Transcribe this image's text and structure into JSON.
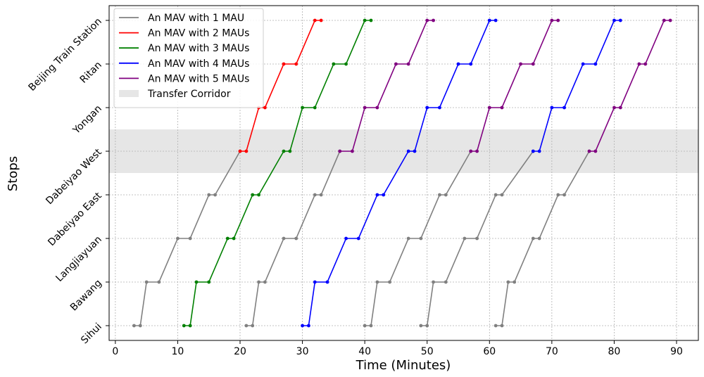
{
  "chart_data": {
    "type": "line",
    "xlabel": "Time (Minutes)",
    "ylabel": "Stops",
    "xlim": [
      -1,
      93.5
    ],
    "x_ticks": [
      0,
      10,
      20,
      30,
      40,
      50,
      60,
      70,
      80,
      90
    ],
    "y_categories": [
      "Sihui",
      "Bawang",
      "Langjiayuan",
      "Dabeiyao East",
      "Dabeiyao West",
      "Yongan",
      "Ritan",
      "Beijing Train Station"
    ],
    "grid": true,
    "legend_placement": "top-left",
    "transfer_corridor": {
      "label": "Transfer Corridor",
      "color": "#e6e6e6",
      "y_range": [
        3.5,
        4.5
      ]
    },
    "series": [
      {
        "name": "An MAV with 1 MAU",
        "color": "#808080"
      },
      {
        "name": "An MAV with 2 MAUs",
        "color": "#ff0000"
      },
      {
        "name": "An MAV with 3 MAUs",
        "color": "#008000"
      },
      {
        "name": "An MAV with 4 MAUs",
        "color": "#0000ff"
      },
      {
        "name": "An MAV with 5 MAUs",
        "color": "#800080"
      }
    ],
    "vehicles": [
      {
        "series": 0,
        "stops": [
          [
            3,
            4
          ],
          [
            5,
            7
          ],
          [
            10,
            12
          ],
          [
            15,
            16
          ],
          [
            20
          ]
        ]
      },
      {
        "series": 1,
        "stops": [
          null,
          null,
          null,
          null,
          [
            20,
            21
          ],
          [
            23,
            24
          ],
          [
            27,
            29
          ],
          [
            32,
            33
          ]
        ]
      },
      {
        "series": 2,
        "stops": [
          [
            11,
            12
          ],
          [
            13,
            15
          ],
          [
            18,
            19
          ],
          [
            22,
            23
          ],
          [
            27,
            28
          ],
          [
            30,
            32
          ],
          [
            35,
            37
          ],
          [
            40,
            41
          ]
        ]
      },
      {
        "series": 0,
        "stops": [
          [
            21,
            22
          ],
          [
            23,
            24
          ],
          [
            27,
            29
          ],
          [
            32,
            33
          ],
          [
            36
          ]
        ]
      },
      {
        "series": 4,
        "stops": [
          null,
          null,
          null,
          null,
          [
            36,
            38
          ],
          [
            40,
            42
          ],
          [
            45,
            47
          ],
          [
            50,
            51
          ]
        ]
      },
      {
        "series": 3,
        "stops": [
          [
            30,
            31
          ],
          [
            32,
            34
          ],
          [
            37,
            39
          ],
          [
            42,
            43
          ],
          [
            47,
            48
          ],
          [
            50,
            52
          ],
          [
            55,
            57
          ],
          [
            60,
            61
          ]
        ]
      },
      {
        "series": 0,
        "stops": [
          [
            40,
            41
          ],
          [
            42,
            44
          ],
          [
            47,
            49
          ],
          [
            52,
            53
          ],
          [
            57
          ]
        ]
      },
      {
        "series": 4,
        "stops": [
          null,
          null,
          null,
          null,
          [
            57,
            58
          ],
          [
            60,
            62
          ],
          [
            65,
            67
          ],
          [
            70,
            71
          ]
        ]
      },
      {
        "series": 0,
        "stops": [
          [
            49,
            50
          ],
          [
            51,
            53
          ],
          [
            56,
            58
          ],
          [
            61,
            62
          ],
          [
            67
          ]
        ]
      },
      {
        "series": 3,
        "stops": [
          null,
          null,
          null,
          null,
          [
            67,
            68
          ],
          [
            70,
            72
          ],
          [
            75,
            77
          ],
          [
            80,
            81
          ]
        ]
      },
      {
        "series": 0,
        "stops": [
          [
            61,
            62
          ],
          [
            63,
            64
          ],
          [
            67,
            68
          ],
          [
            71,
            72
          ],
          [
            76
          ]
        ]
      },
      {
        "series": 4,
        "stops": [
          null,
          null,
          null,
          null,
          [
            76,
            77
          ],
          [
            80,
            81
          ],
          [
            84,
            85
          ],
          [
            88,
            89
          ]
        ]
      }
    ]
  }
}
